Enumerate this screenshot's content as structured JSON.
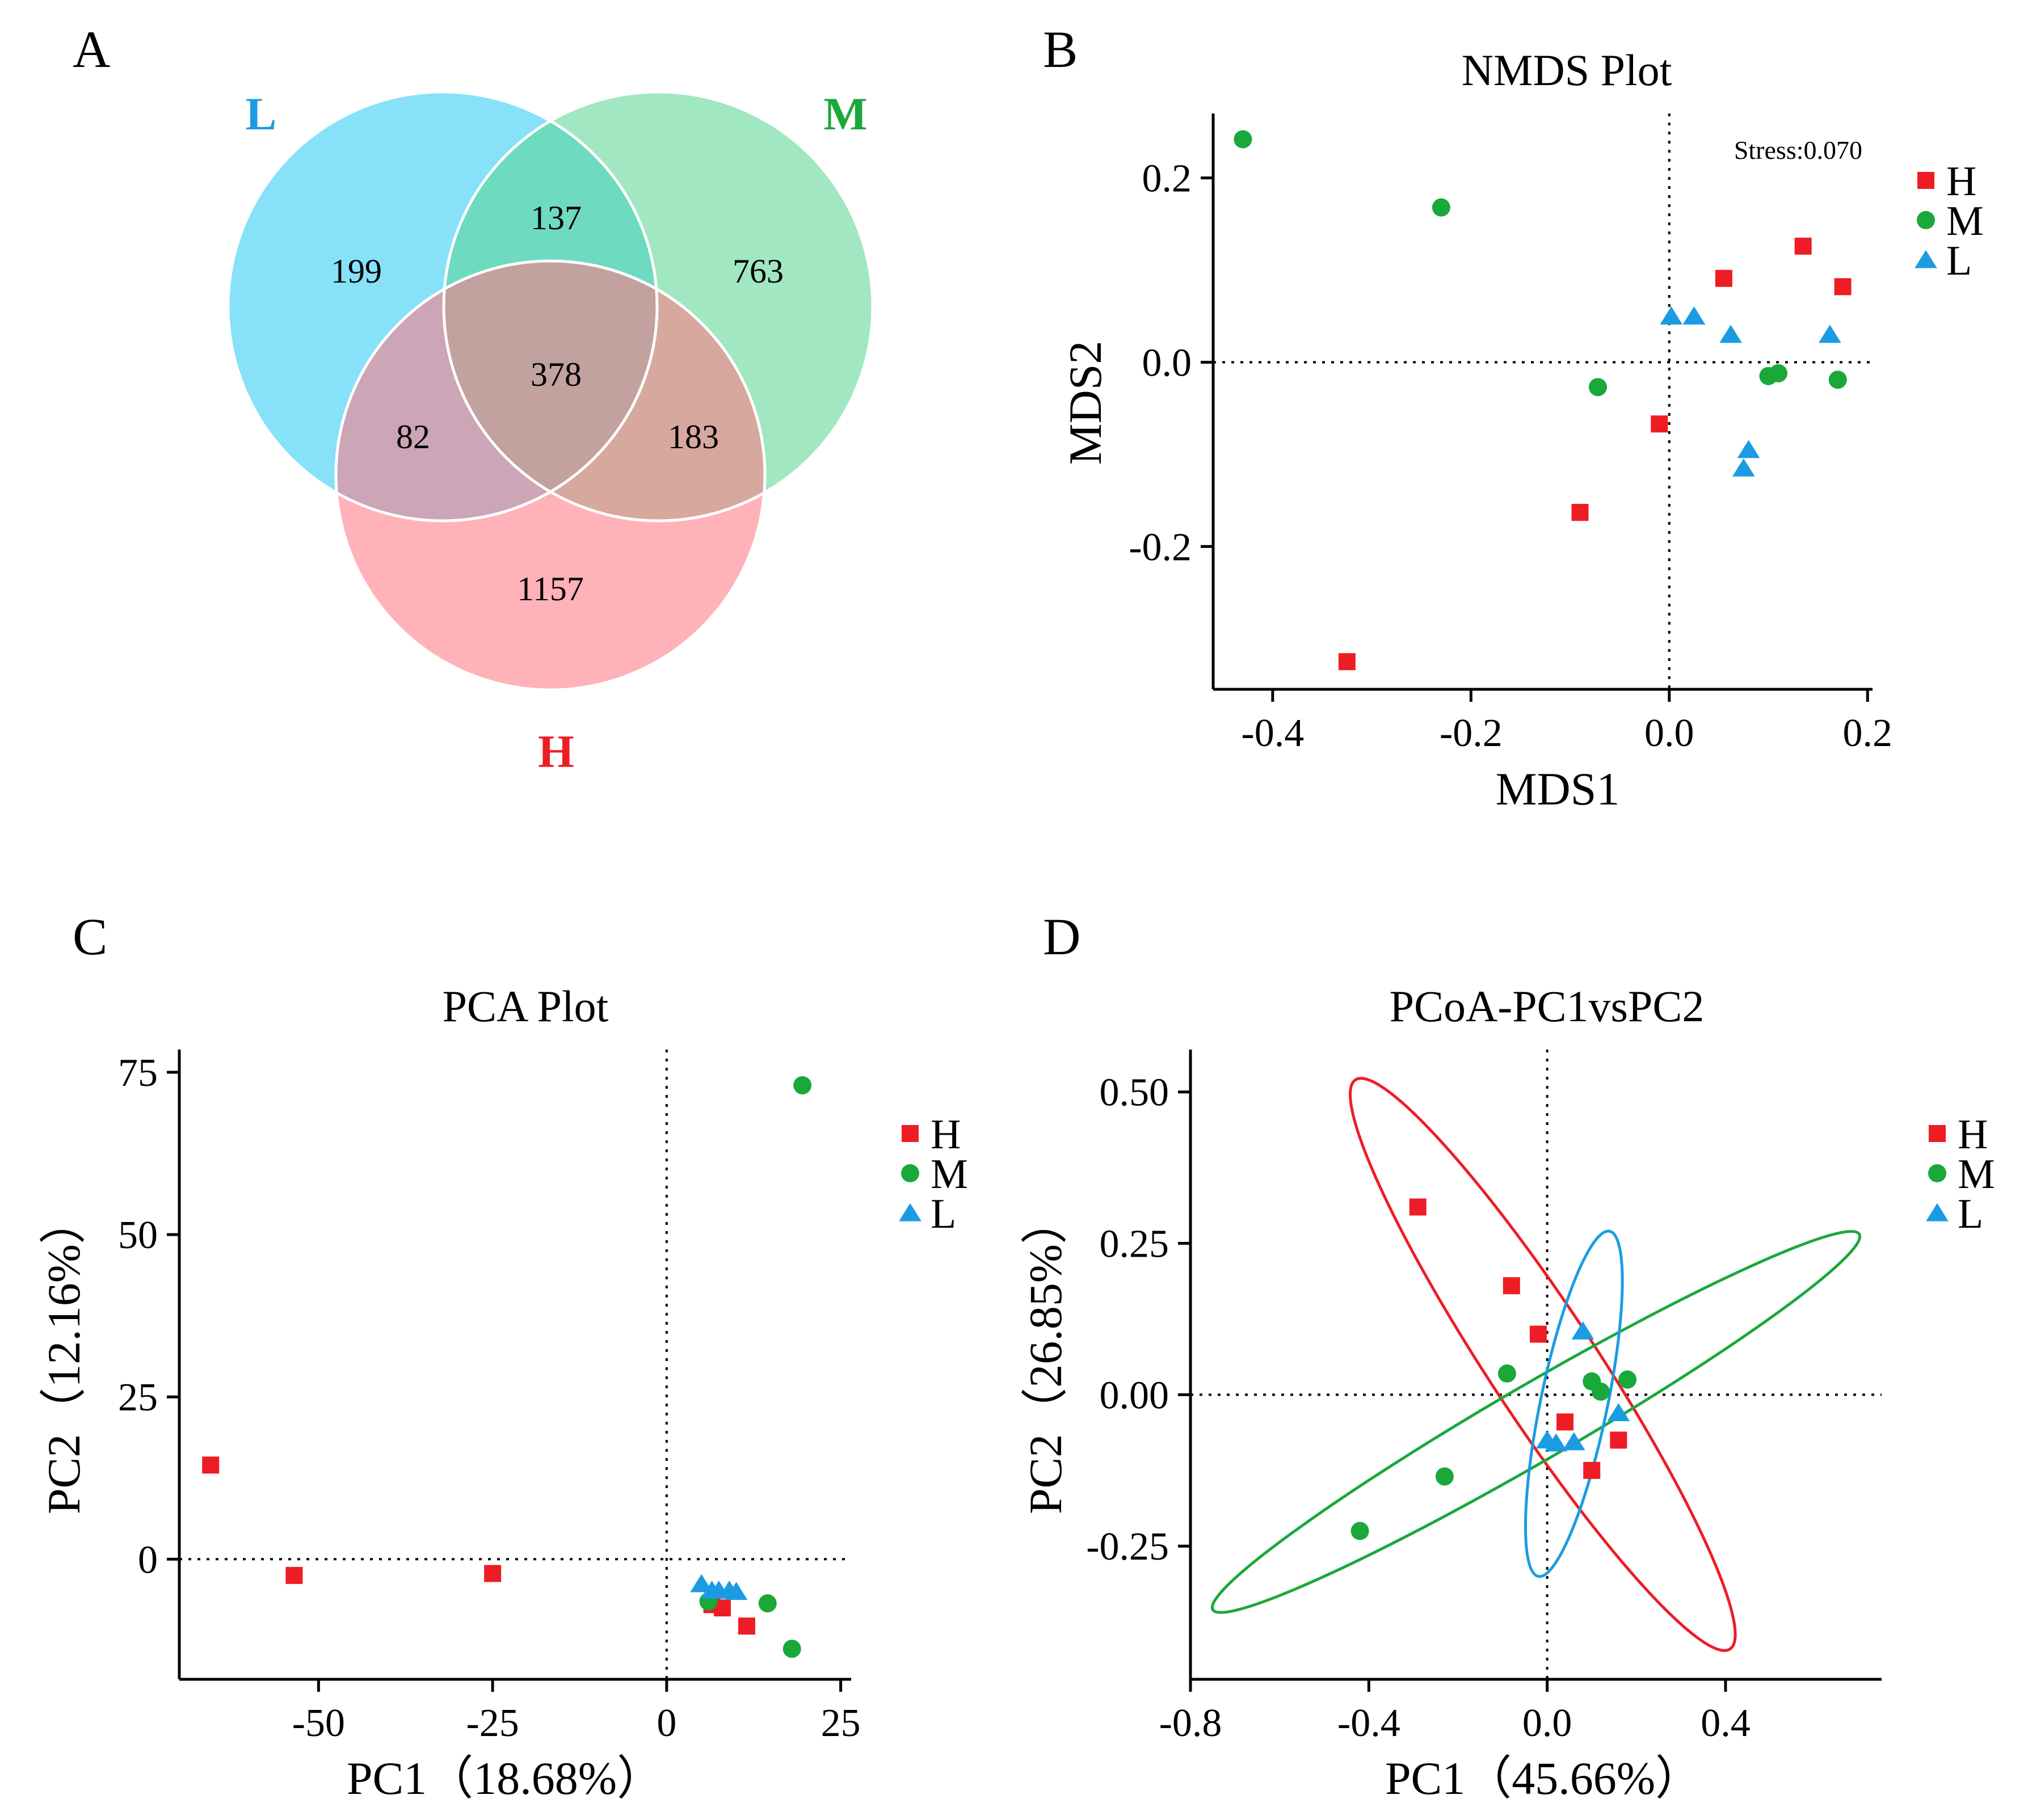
{
  "panels": {
    "A": {
      "letter": "A"
    },
    "B": {
      "letter": "B"
    },
    "C": {
      "letter": "C"
    },
    "D": {
      "letter": "D"
    }
  },
  "colors": {
    "H": "#ee1c25",
    "M": "#1aa83a",
    "L": "#1b9ce2"
  },
  "chart_data": [
    {
      "panel": "A",
      "type": "venn",
      "sets": [
        {
          "key": "L",
          "label": "L",
          "color": "#2ecbf5",
          "label_color": "#1b9ce2"
        },
        {
          "key": "M",
          "label": "M",
          "color": "#5dd696",
          "label_color": "#1aa83a"
        },
        {
          "key": "H",
          "label": "H",
          "color": "#ff7a85",
          "label_color": "#ee1c25"
        }
      ],
      "regions": [
        {
          "sets": [
            "L"
          ],
          "count": "199"
        },
        {
          "sets": [
            "M"
          ],
          "count": "763"
        },
        {
          "sets": [
            "H"
          ],
          "count": "1157"
        },
        {
          "sets": [
            "L",
            "M"
          ],
          "count": "137"
        },
        {
          "sets": [
            "L",
            "H"
          ],
          "count": "82"
        },
        {
          "sets": [
            "M",
            "H"
          ],
          "count": "183"
        },
        {
          "sets": [
            "L",
            "M",
            "H"
          ],
          "count": "378"
        }
      ]
    },
    {
      "panel": "B",
      "type": "scatter",
      "title": "NMDS Plot",
      "xlabel": "MDS1",
      "ylabel": "MDS2",
      "xlim": [
        -0.46,
        0.205
      ],
      "ylim": [
        -0.355,
        0.27
      ],
      "xticks": [
        -0.4,
        -0.2,
        0.0,
        0.2
      ],
      "xtick_labels": [
        "-0.4",
        "-0.2",
        "0.0",
        "0.2"
      ],
      "yticks": [
        -0.2,
        0.0,
        0.2
      ],
      "ytick_labels": [
        "-0.2",
        "0.0",
        "0.2"
      ],
      "ref_x": 0,
      "ref_y": 0,
      "annotation": "Stress:0.070",
      "legend_position": "right",
      "series": [
        {
          "name": "H",
          "marker": "square",
          "color": "#ee1c25",
          "points": [
            [
              -0.325,
              -0.325
            ],
            [
              -0.09,
              -0.163
            ],
            [
              -0.01,
              -0.067
            ],
            [
              0.055,
              0.091
            ],
            [
              0.135,
              0.126
            ],
            [
              0.175,
              0.082
            ]
          ]
        },
        {
          "name": "M",
          "marker": "circle",
          "color": "#1aa83a",
          "points": [
            [
              -0.43,
              0.242
            ],
            [
              -0.23,
              0.168
            ],
            [
              -0.072,
              -0.027
            ],
            [
              0.1,
              -0.015
            ],
            [
              0.11,
              -0.012
            ],
            [
              0.17,
              -0.019
            ]
          ]
        },
        {
          "name": "L",
          "marker": "triangle",
          "color": "#1b9ce2",
          "points": [
            [
              0.002,
              0.05
            ],
            [
              0.025,
              0.05
            ],
            [
              0.062,
              0.03
            ],
            [
              0.08,
              -0.095
            ],
            [
              0.075,
              -0.115
            ],
            [
              0.162,
              0.03
            ]
          ]
        }
      ]
    },
    {
      "panel": "C",
      "type": "scatter",
      "title": "PCA Plot",
      "xlabel": "PC1（18.68%）",
      "ylabel": "PC2（12.16%）",
      "xlim": [
        -70,
        26.5
      ],
      "ylim": [
        -18.5,
        78.5
      ],
      "xticks": [
        -50,
        -25,
        0,
        25
      ],
      "xtick_labels": [
        "-50",
        "-25",
        "0",
        "25"
      ],
      "yticks": [
        0,
        25,
        50,
        75
      ],
      "ytick_labels": [
        "0",
        "25",
        "50",
        "75"
      ],
      "ref_x": 0,
      "ref_y": 0,
      "legend_position": "right",
      "series": [
        {
          "name": "H",
          "marker": "square",
          "color": "#ee1c25",
          "points": [
            [
              -65.5,
              14.5
            ],
            [
              -53.5,
              -2.5
            ],
            [
              -25,
              -2.2
            ],
            [
              6.5,
              -7
            ],
            [
              8,
              -7.5
            ],
            [
              11.5,
              -10.3
            ]
          ]
        },
        {
          "name": "M",
          "marker": "circle",
          "color": "#1aa83a",
          "points": [
            [
              6,
              -6.5
            ],
            [
              14.5,
              -6.8
            ],
            [
              18,
              -13.8
            ],
            [
              19.5,
              73
            ]
          ]
        },
        {
          "name": "L",
          "marker": "triangle",
          "color": "#1b9ce2",
          "points": [
            [
              5,
              -3.8
            ],
            [
              6.5,
              -4.8
            ],
            [
              7.5,
              -4.8
            ],
            [
              9,
              -4.8
            ],
            [
              10,
              -5
            ]
          ]
        }
      ]
    },
    {
      "panel": "D",
      "type": "scatter",
      "title": "PCoA-PC1vsPC2",
      "xlabel": "PC1（45.66%）",
      "ylabel": "PC2（26.85%）",
      "xlim": [
        -0.8,
        0.75
      ],
      "ylim": [
        -0.47,
        0.57
      ],
      "xticks": [
        -0.8,
        -0.4,
        0.0,
        0.4
      ],
      "xtick_labels": [
        "-0.8",
        "-0.4",
        "0.0",
        "0.4"
      ],
      "yticks": [
        -0.25,
        0.0,
        0.25,
        0.5
      ],
      "ytick_labels": [
        "-0.25",
        "0.00",
        "0.25",
        "0.50"
      ],
      "ref_x": 0,
      "ref_y": 0,
      "legend_position": "right",
      "series": [
        {
          "name": "H",
          "marker": "square",
          "color": "#ee1c25",
          "points": [
            [
              -0.29,
              0.31
            ],
            [
              -0.08,
              0.18
            ],
            [
              -0.02,
              0.1
            ],
            [
              0.04,
              -0.045
            ],
            [
              0.1,
              -0.125
            ],
            [
              0.16,
              -0.075
            ]
          ]
        },
        {
          "name": "M",
          "marker": "circle",
          "color": "#1aa83a",
          "points": [
            [
              -0.42,
              -0.225
            ],
            [
              -0.23,
              -0.135
            ],
            [
              -0.09,
              0.035
            ],
            [
              0.1,
              0.022
            ],
            [
              0.12,
              0.005
            ],
            [
              0.18,
              0.025
            ]
          ]
        },
        {
          "name": "L",
          "marker": "triangle",
          "color": "#1b9ce2",
          "points": [
            [
              0.0,
              -0.075
            ],
            [
              0.02,
              -0.08
            ],
            [
              0.06,
              -0.078
            ],
            [
              0.08,
              0.105
            ],
            [
              0.16,
              -0.03
            ]
          ]
        }
      ],
      "ellipses": [
        {
          "group": "H",
          "color": "#ee1c25",
          "points": [
            [
              -0.43,
              0.52
            ],
            [
              0.41,
              -0.42
            ]
          ],
          "minor": 0.12
        },
        {
          "group": "M",
          "color": "#1aa83a",
          "points": [
            [
              -0.75,
              -0.355
            ],
            [
              0.7,
              0.265
            ]
          ],
          "minor": 0.085
        },
        {
          "group": "L",
          "color": "#1b9ce2",
          "points": [
            [
              0.14,
              0.27
            ],
            [
              -0.02,
              -0.3
            ]
          ],
          "minor": 0.075
        }
      ]
    }
  ]
}
